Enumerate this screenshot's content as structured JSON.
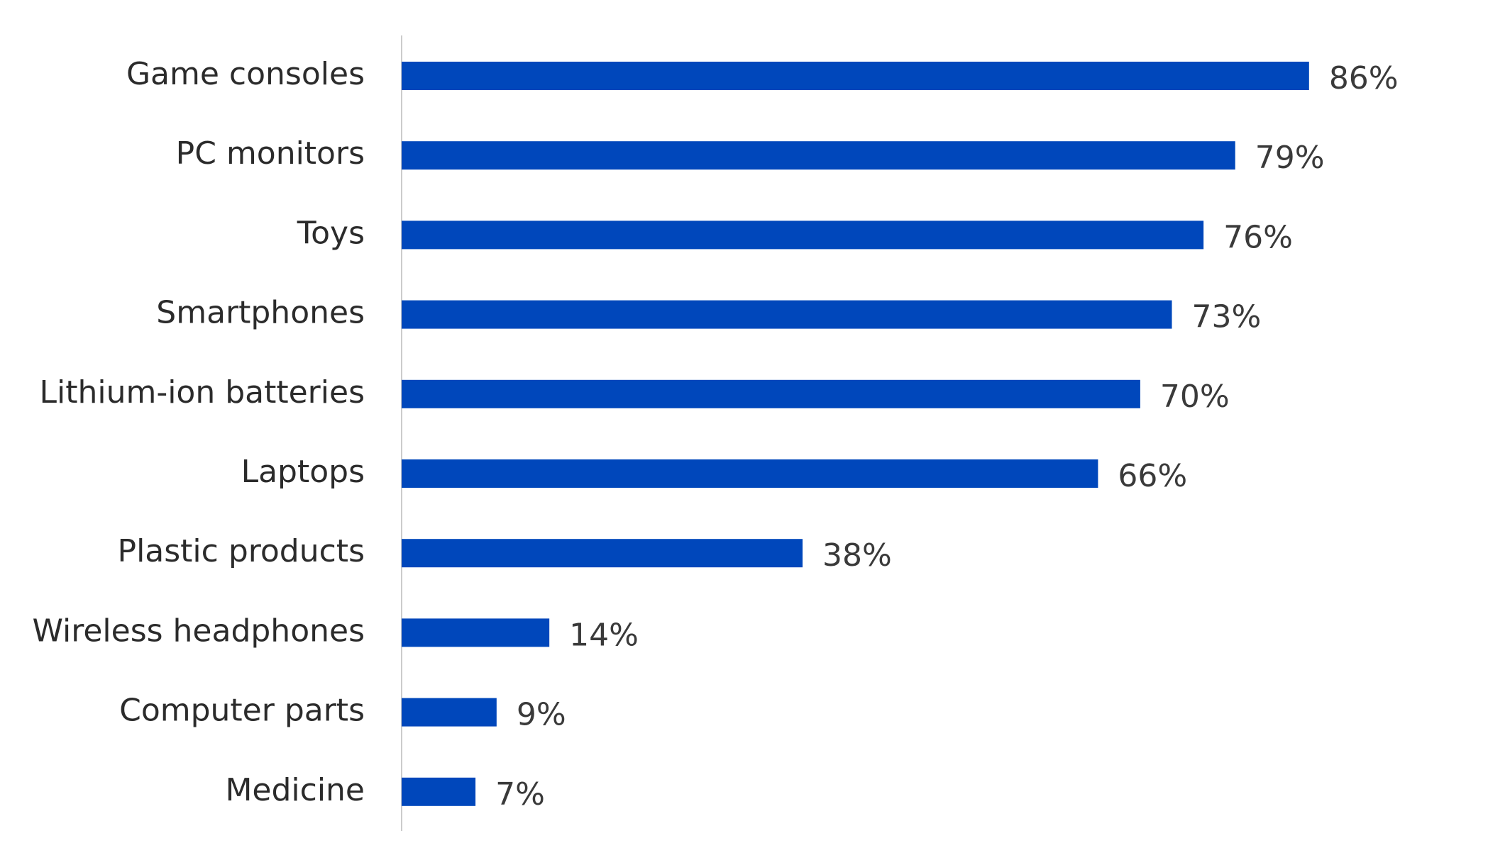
{
  "chart_data": {
    "type": "bar",
    "orientation": "horizontal",
    "categories": [
      "Game consoles",
      "PC monitors",
      "Toys",
      "Smartphones",
      "Lithium-ion batteries",
      "Laptops",
      "Plastic products",
      "Wireless headphones",
      "Computer parts",
      "Medicine"
    ],
    "values": [
      86,
      79,
      76,
      73,
      70,
      66,
      38,
      14,
      9,
      7
    ],
    "value_labels": [
      "86%",
      "79%",
      "76%",
      "73%",
      "70%",
      "66%",
      "38%",
      "14%",
      "9%",
      "7%"
    ],
    "title": "",
    "xlabel": "",
    "ylabel": "",
    "xlim": [
      0,
      100
    ],
    "grid": false,
    "legend": "none",
    "bar_color": "#0047bb",
    "axis_color": "#cccccc",
    "label_color": "#2b2b2b",
    "value_label_color": "#3a3a3a"
  }
}
